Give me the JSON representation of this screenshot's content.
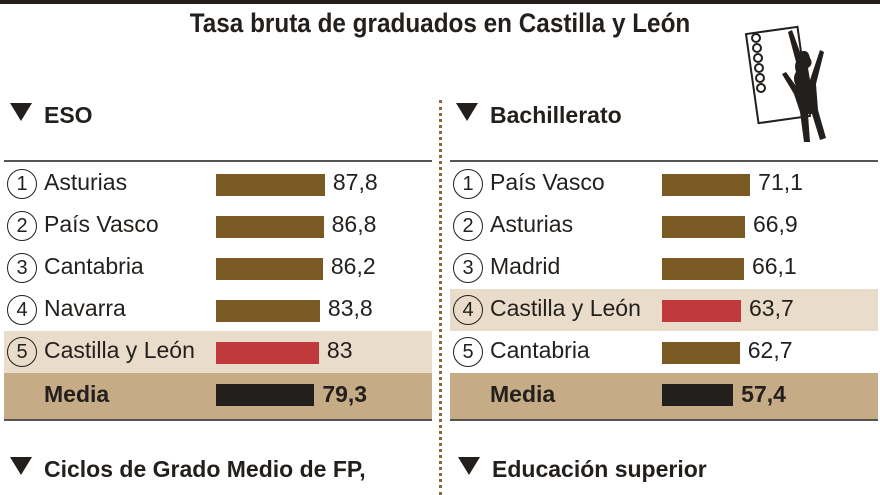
{
  "title": "Tasa bruta de graduados en Castilla y León",
  "colors": {
    "bar": "#7a5a22",
    "highlight": "#c0393d",
    "media": "#231f1c"
  },
  "chart_data": [
    {
      "type": "bar",
      "title": "ESO",
      "categories": [
        "Asturias",
        "País Vasco",
        "Cantabria",
        "Navarra",
        "Castilla y León",
        "Media"
      ],
      "ranks": [
        "1",
        "2",
        "3",
        "4",
        "5",
        ""
      ],
      "values": [
        87.8,
        86.8,
        86.2,
        83.8,
        83,
        79.3
      ],
      "labels": [
        "87,8",
        "86,8",
        "86,2",
        "83,8",
        "83",
        "79,3"
      ],
      "highlight": "Castilla y León"
    },
    {
      "type": "bar",
      "title": "Bachillerato",
      "categories": [
        "País Vasco",
        "Asturias",
        "Madrid",
        "Castilla y León",
        "Cantabria",
        "Media"
      ],
      "ranks": [
        "1",
        "2",
        "3",
        "4",
        "5",
        ""
      ],
      "values": [
        71.1,
        66.9,
        66.1,
        63.7,
        62.7,
        57.4
      ],
      "labels": [
        "71,1",
        "66,9",
        "66,1",
        "63,7",
        "62,7",
        "57,4"
      ],
      "highlight": "Castilla y León"
    }
  ],
  "sections": {
    "fp": "Ciclos de Grado Medio de FP,",
    "superior": "Educación superior"
  }
}
